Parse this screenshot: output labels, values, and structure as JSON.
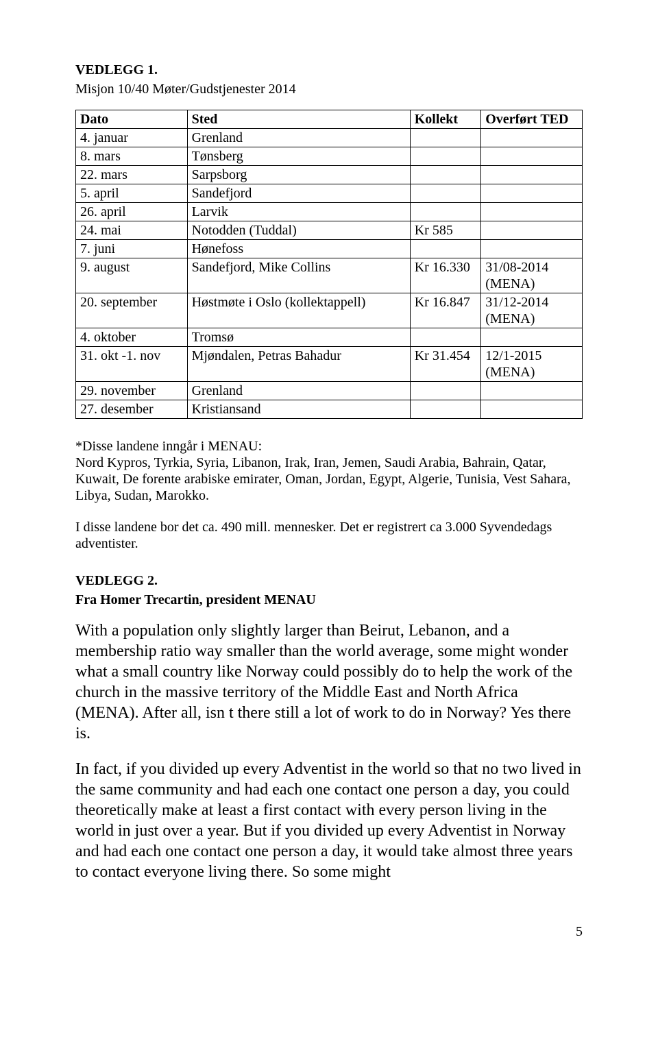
{
  "vedlegg1": {
    "title": "VEDLEGG 1.",
    "subtitle": "Misjon 10/40 Møter/Gudstjenester 2014"
  },
  "table": {
    "headers": {
      "dato": "Dato",
      "sted": "Sted",
      "kollekt": "Kollekt",
      "overfort": "Overført TED"
    },
    "rows": [
      {
        "dato": "4. januar",
        "sted": "Grenland",
        "kollekt": "",
        "overfort": ""
      },
      {
        "dato": "8. mars",
        "sted": "Tønsberg",
        "kollekt": "",
        "overfort": ""
      },
      {
        "dato": "22. mars",
        "sted": "Sarpsborg",
        "kollekt": "",
        "overfort": ""
      },
      {
        "dato": "5. april",
        "sted": "Sandefjord",
        "kollekt": "",
        "overfort": ""
      },
      {
        "dato": "26. april",
        "sted": "Larvik",
        "kollekt": "",
        "overfort": ""
      },
      {
        "dato": "24. mai",
        "sted": "Notodden (Tuddal)",
        "kollekt": "Kr 585",
        "overfort": ""
      },
      {
        "dato": "7. juni",
        "sted": "Hønefoss",
        "kollekt": "",
        "overfort": ""
      },
      {
        "dato": "9. august",
        "sted": "Sandefjord, Mike Collins",
        "kollekt": "Kr 16.330",
        "overfort": "31/08-2014 (MENA)"
      },
      {
        "dato": "20. september",
        "sted": "Høstmøte i Oslo (kollektappell)",
        "kollekt": "Kr 16.847",
        "overfort": "31/12-2014 (MENA)"
      },
      {
        "dato": "4. oktober",
        "sted": "Tromsø",
        "kollekt": "",
        "overfort": ""
      },
      {
        "dato": "31. okt -1. nov",
        "sted": "Mjøndalen, Petras Bahadur",
        "kollekt": "Kr 31.454",
        "overfort": "12/1-2015 (MENA)"
      },
      {
        "dato": "29. november",
        "sted": "Grenland",
        "kollekt": "",
        "overfort": ""
      },
      {
        "dato": "27. desember",
        "sted": "Kristiansand",
        "kollekt": "",
        "overfort": ""
      }
    ]
  },
  "para1": "*Disse landene inngår i MENAU:\nNord Kypros, Tyrkia, Syria, Libanon, Irak, Iran, Jemen, Saudi Arabia, Bahrain, Qatar, Kuwait, De forente arabiske emirater, Oman, Jordan, Egypt, Algerie, Tunisia, Vest Sahara, Libya, Sudan, Marokko.",
  "para2": "I disse landene bor det ca. 490 mill. mennesker. Det er registrert ca 3.000 Syvendedags adventister.",
  "vedlegg2": {
    "title": "VEDLEGG 2.",
    "subtitle": "Fra Homer Trecartin, president MENAU"
  },
  "para3": "With a population only slightly larger than Beirut, Lebanon, and a membership ratio way smaller than the world average, some might wonder what a small country like Norway could possibly do to help the work of the church in the massive territory of the Middle East and North Africa (MENA). After all, isn t there still a lot of work to do in Norway? Yes there is.",
  "para4": "In fact, if you divided up every Adventist in the world so that no two lived in the same community and had each one contact one person a day, you could theoretically make at least a first contact with every person living in the world in just over a year. But if you divided up every Adventist in Norway and had each one contact one person a day, it would take almost three years to contact everyone living there. So some might",
  "page_number": "5"
}
